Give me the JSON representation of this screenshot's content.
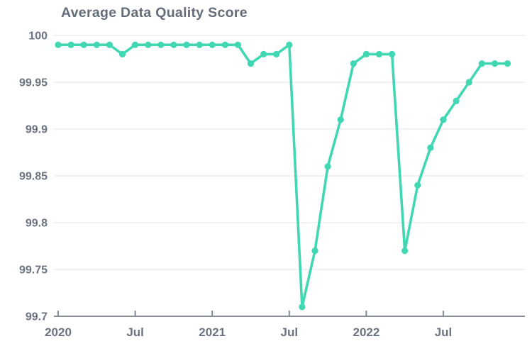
{
  "page": {
    "background": "#ffffff"
  },
  "chart_data": {
    "type": "line",
    "title": "Average Data Quality Score",
    "x": [
      "Jan 2020",
      "Feb 2020",
      "Mar 2020",
      "Apr 2020",
      "May 2020",
      "Jun 2020",
      "Jul 2020",
      "Aug 2020",
      "Sep 2020",
      "Oct 2020",
      "Nov 2020",
      "Dec 2020",
      "Jan 2021",
      "Feb 2021",
      "Mar 2021",
      "Apr 2021",
      "May 2021",
      "Jun 2021",
      "Jul 2021",
      "Aug 2021",
      "Sep 2021",
      "Oct 2021",
      "Nov 2021",
      "Dec 2021",
      "Jan 2022",
      "Feb 2022",
      "Mar 2022",
      "Apr 2022",
      "May 2022",
      "Jun 2022",
      "Jul 2022",
      "Aug 2022",
      "Sep 2022",
      "Oct 2022",
      "Nov 2022",
      "Dec 2022"
    ],
    "values": [
      99.99,
      99.99,
      99.99,
      99.99,
      99.99,
      99.98,
      99.99,
      99.99,
      99.99,
      99.99,
      99.99,
      99.99,
      99.99,
      99.99,
      99.99,
      99.97,
      99.98,
      99.98,
      99.99,
      99.71,
      99.77,
      99.86,
      99.91,
      99.97,
      99.98,
      99.98,
      99.98,
      99.77,
      99.84,
      99.88,
      99.91,
      99.93,
      99.95,
      99.97,
      99.97,
      99.97
    ],
    "ylim": [
      99.7,
      100
    ],
    "y_ticks": [
      {
        "value": 100,
        "label": "100"
      },
      {
        "value": 99.95,
        "label": "99.95"
      },
      {
        "value": 99.9,
        "label": "99.9"
      },
      {
        "value": 99.85,
        "label": "99.85"
      },
      {
        "value": 99.8,
        "label": "99.8"
      },
      {
        "value": 99.75,
        "label": "99.75"
      },
      {
        "value": 99.7,
        "label": "99.7"
      }
    ],
    "x_ticks": [
      {
        "month_index": 0,
        "label": "2020"
      },
      {
        "month_index": 6,
        "label": "Jul"
      },
      {
        "month_index": 12,
        "label": "2021"
      },
      {
        "month_index": 18,
        "label": "Jul"
      },
      {
        "month_index": 24,
        "label": "2022"
      },
      {
        "month_index": 30,
        "label": "Jul"
      }
    ],
    "xlabel": "",
    "ylabel": "",
    "grid": "horizontal-only",
    "legend": "none",
    "marker": "circle",
    "line_color": "#41d7b3",
    "grid_color": "#e6e9f2",
    "axis_color": "#78808b",
    "tick_label_color": "#6b7280",
    "title_color": "#636c78"
  }
}
